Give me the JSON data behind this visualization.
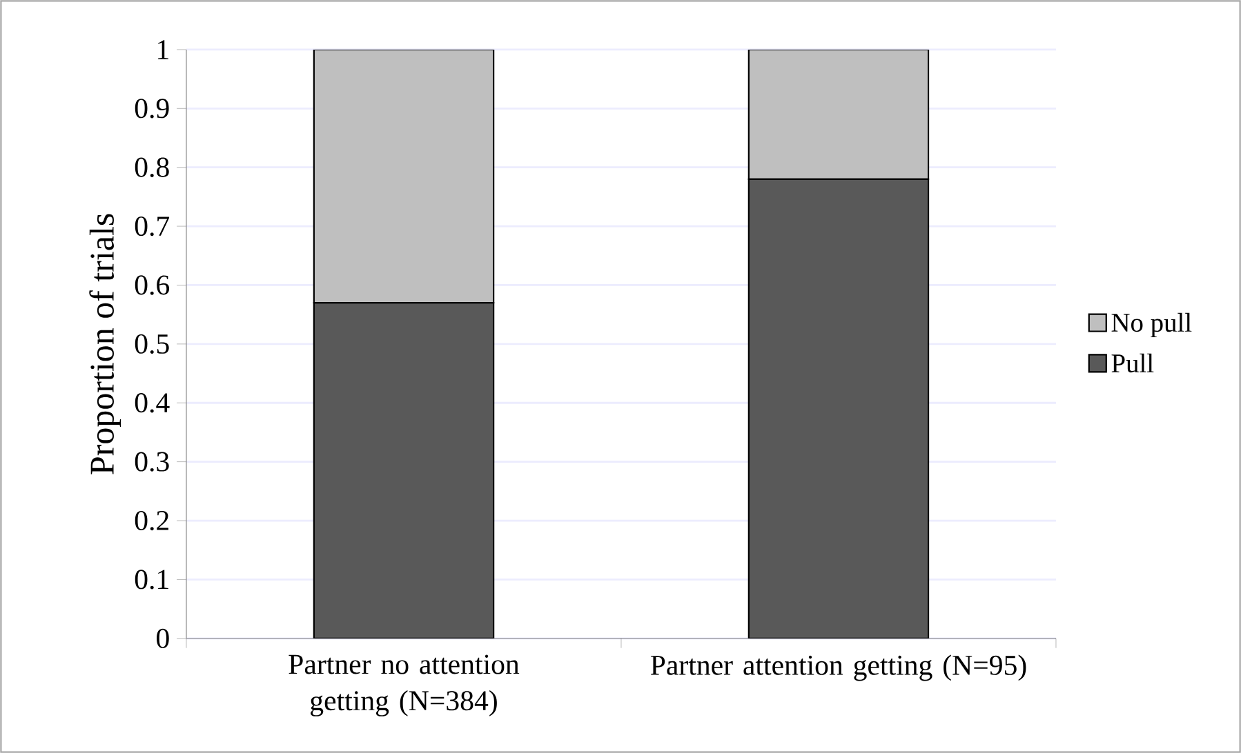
{
  "chart_data": {
    "type": "bar",
    "stacked": true,
    "ylabel": "Proportion of trials",
    "categories": [
      "Partner no attention getting (N=384)",
      "Partner attention getting (N=95)"
    ],
    "series": [
      {
        "name": "Pull",
        "color": "#595959",
        "values": [
          0.57,
          0.78
        ]
      },
      {
        "name": "No pull",
        "color": "#bfbfbf",
        "values": [
          0.43,
          0.22
        ]
      }
    ],
    "ylim": [
      0,
      1
    ],
    "yticks": [
      0,
      0.1,
      0.2,
      0.3,
      0.4,
      0.5,
      0.6,
      0.7,
      0.8,
      0.9,
      1
    ],
    "grid": "y",
    "legend": "right"
  }
}
